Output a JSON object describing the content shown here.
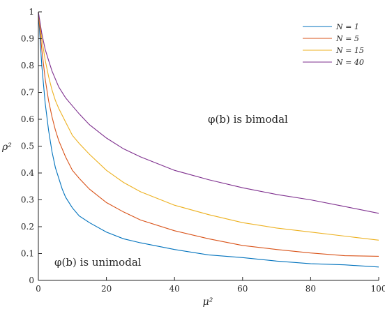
{
  "chart_data": {
    "type": "line",
    "xlabel": "μ²",
    "ylabel": "ρ²",
    "xlim": [
      0,
      100
    ],
    "ylim": [
      0,
      1
    ],
    "xticks": [
      "0",
      "20",
      "40",
      "60",
      "80",
      "100"
    ],
    "yticks": [
      "0",
      "0.1",
      "0.2",
      "0.3",
      "0.4",
      "0.5",
      "0.6",
      "0.7",
      "0.8",
      "0.9",
      "1"
    ],
    "grid": false,
    "legend_position": "top-right",
    "annotations": {
      "bimodal": "φ(b) is bimodal",
      "unimodal": "φ(b) is unimodal"
    },
    "series": [
      {
        "name": "N = 1",
        "color": "#0072BD",
        "x": [
          0,
          1,
          2,
          3,
          4,
          5,
          6,
          7,
          8,
          10,
          12,
          15,
          20,
          25,
          30,
          40,
          50,
          60,
          70,
          80,
          90,
          100
        ],
        "y": [
          1.0,
          0.8,
          0.66,
          0.56,
          0.48,
          0.42,
          0.38,
          0.34,
          0.31,
          0.27,
          0.24,
          0.215,
          0.18,
          0.155,
          0.14,
          0.115,
          0.095,
          0.085,
          0.072,
          0.062,
          0.058,
          0.05
        ]
      },
      {
        "name": "N = 5",
        "color": "#D95319",
        "x": [
          0,
          1,
          2,
          3,
          4,
          5,
          6,
          8,
          10,
          12,
          15,
          20,
          25,
          30,
          40,
          50,
          60,
          70,
          80,
          90,
          100
        ],
        "y": [
          1.0,
          0.86,
          0.75,
          0.67,
          0.61,
          0.56,
          0.52,
          0.46,
          0.41,
          0.38,
          0.34,
          0.29,
          0.255,
          0.225,
          0.185,
          0.155,
          0.13,
          0.115,
          0.102,
          0.092,
          0.09
        ]
      },
      {
        "name": "N = 15",
        "color": "#EDB120",
        "x": [
          0,
          1,
          2,
          3,
          4,
          5,
          6,
          8,
          10,
          12,
          15,
          20,
          25,
          30,
          40,
          50,
          60,
          70,
          80,
          90,
          100
        ],
        "y": [
          1.0,
          0.9,
          0.82,
          0.76,
          0.71,
          0.67,
          0.64,
          0.59,
          0.54,
          0.51,
          0.47,
          0.41,
          0.365,
          0.33,
          0.28,
          0.245,
          0.215,
          0.195,
          0.18,
          0.165,
          0.15
        ]
      },
      {
        "name": "N = 40",
        "color": "#7E2F8E",
        "x": [
          0,
          1,
          2,
          3,
          4,
          5,
          6,
          8,
          10,
          12,
          15,
          20,
          25,
          30,
          40,
          50,
          60,
          70,
          80,
          90,
          100
        ],
        "y": [
          1.0,
          0.92,
          0.86,
          0.82,
          0.78,
          0.75,
          0.72,
          0.68,
          0.65,
          0.62,
          0.58,
          0.53,
          0.49,
          0.46,
          0.41,
          0.375,
          0.345,
          0.32,
          0.3,
          0.275,
          0.25
        ]
      }
    ]
  }
}
